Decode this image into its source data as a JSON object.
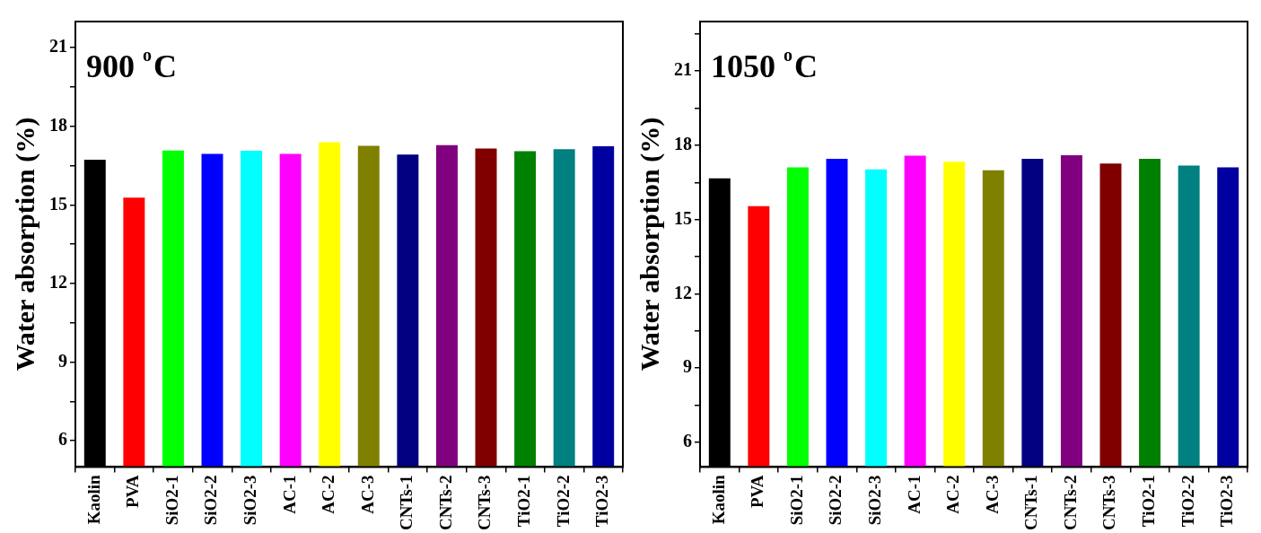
{
  "chart_data": [
    {
      "type": "bar",
      "title": "900 $^{o}$C",
      "ylabel": "Water absorption (%)",
      "categories": [
        "Kaolin",
        "PVA",
        "SiO2-1",
        "SiO2-2",
        "SiO2-3",
        "AC-1",
        "AC-2",
        "AC-3",
        "CNTs-1",
        "CNTs-2",
        "CNTs-3",
        "TiO2-1",
        "TiO2-2",
        "TiO2-3"
      ],
      "values": [
        16.73,
        15.28,
        17.08,
        16.95,
        17.07,
        16.95,
        17.39,
        17.26,
        16.92,
        17.28,
        17.15,
        17.05,
        17.13,
        17.24
      ],
      "colors": [
        "#000000",
        "#ff0000",
        "#00ff00",
        "#0000ff",
        "#00ffff",
        "#ff00ff",
        "#ffff00",
        "#808000",
        "#000080",
        "#800080",
        "#800000",
        "#008000",
        "#008080",
        "#0000a0"
      ],
      "ylim": [
        5,
        22
      ],
      "yticks": [
        6,
        {
          "value": 7.5,
          "label": null
        },
        9,
        {
          "value": 10.5,
          "label": null
        },
        12,
        {
          "value": 13.5,
          "label": null
        },
        15,
        {
          "value": 16.5,
          "label": null
        },
        18,
        {
          "value": 19.5,
          "label": null
        },
        21
      ]
    },
    {
      "type": "bar",
      "title": "1050 $^{o}$C",
      "ylabel": "Water absorption (%)",
      "categories": [
        "Kaolin",
        "PVA",
        "SiO2-1",
        "SiO2-2",
        "SiO2-3",
        "AC-1",
        "AC-2",
        "AC-3",
        "CNTs-1",
        "CNTs-2",
        "CNTs-3",
        "TiO2-1",
        "TiO2-2",
        "TiO2-3"
      ],
      "values": [
        16.66,
        15.54,
        17.11,
        17.45,
        17.03,
        17.58,
        17.33,
        16.99,
        17.45,
        17.6,
        17.26,
        17.45,
        17.18,
        17.11
      ],
      "colors": [
        "#000000",
        "#ff0000",
        "#00ff00",
        "#0000ff",
        "#00ffff",
        "#ff00ff",
        "#ffff00",
        "#808000",
        "#000080",
        "#800080",
        "#800000",
        "#008000",
        "#008080",
        "#0000a0"
      ],
      "ylim": [
        5,
        23
      ],
      "yticks": [
        6,
        {
          "value": 7.5,
          "label": null
        },
        9,
        {
          "value": 10.5,
          "label": null
        },
        12,
        {
          "value": 13.5,
          "label": null
        },
        15,
        {
          "value": 16.5,
          "label": null
        },
        18,
        {
          "value": 19.5,
          "label": null
        },
        21,
        {
          "value": 22.5,
          "label": null
        }
      ]
    }
  ]
}
